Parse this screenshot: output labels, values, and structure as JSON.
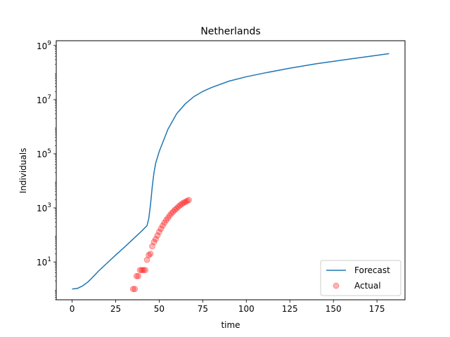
{
  "chart_data": {
    "type": "line",
    "title": "Netherlands",
    "xlabel": "time",
    "ylabel": "Individuals",
    "xlim": [
      -9.1,
      191.1
    ],
    "ylim": [
      0.4,
      1500000000
    ],
    "yscale": "log",
    "grid": false,
    "legend_position": "lower-right",
    "x_ticks": [
      0,
      25,
      50,
      75,
      100,
      125,
      150,
      175
    ],
    "y_ticks": [
      {
        "value": 10,
        "base": "10",
        "exp": "1"
      },
      {
        "value": 1000,
        "base": "10",
        "exp": "3"
      },
      {
        "value": 100000,
        "base": "10",
        "exp": "5"
      },
      {
        "value": 10000000,
        "base": "10",
        "exp": "7"
      },
      {
        "value": 1000000000,
        "base": "10",
        "exp": "9"
      }
    ],
    "series": [
      {
        "name": "Forecast",
        "kind": "line",
        "color": "#1f77b4",
        "x": [
          0,
          3,
          6,
          9,
          12,
          15,
          20,
          25,
          30,
          35,
          40,
          43,
          44,
          45,
          46,
          47,
          48,
          50,
          55,
          60,
          65,
          70,
          75,
          80,
          90,
          100,
          110,
          125,
          140,
          150,
          160,
          170,
          182
        ],
        "y": [
          1,
          1.05,
          1.3,
          1.8,
          2.8,
          4.5,
          9,
          18,
          35,
          70,
          140,
          220,
          400,
          1300,
          6000,
          20000,
          45000,
          120000,
          800000,
          3000000,
          7000000,
          13000000,
          20000000,
          28000000,
          48000000,
          70000000,
          95000000,
          145000000,
          210000000,
          260000000,
          320000000,
          390000000,
          500000000
        ]
      },
      {
        "name": "Actual",
        "kind": "scatter",
        "color": "#ff0000",
        "x": [
          35,
          36,
          37,
          38,
          39,
          40,
          41,
          42,
          43,
          44,
          45,
          46,
          47,
          48,
          49,
          50,
          51,
          52,
          53,
          54,
          55,
          56,
          57,
          58,
          59,
          60,
          61,
          62,
          63,
          64,
          65,
          66,
          67
        ],
        "y": [
          1,
          1,
          3,
          3,
          5,
          5,
          5,
          5,
          12,
          18,
          20,
          38,
          55,
          70,
          95,
          130,
          170,
          220,
          280,
          350,
          420,
          520,
          620,
          720,
          840,
          950,
          1100,
          1250,
          1400,
          1550,
          1650,
          1800,
          1950
        ]
      }
    ]
  }
}
